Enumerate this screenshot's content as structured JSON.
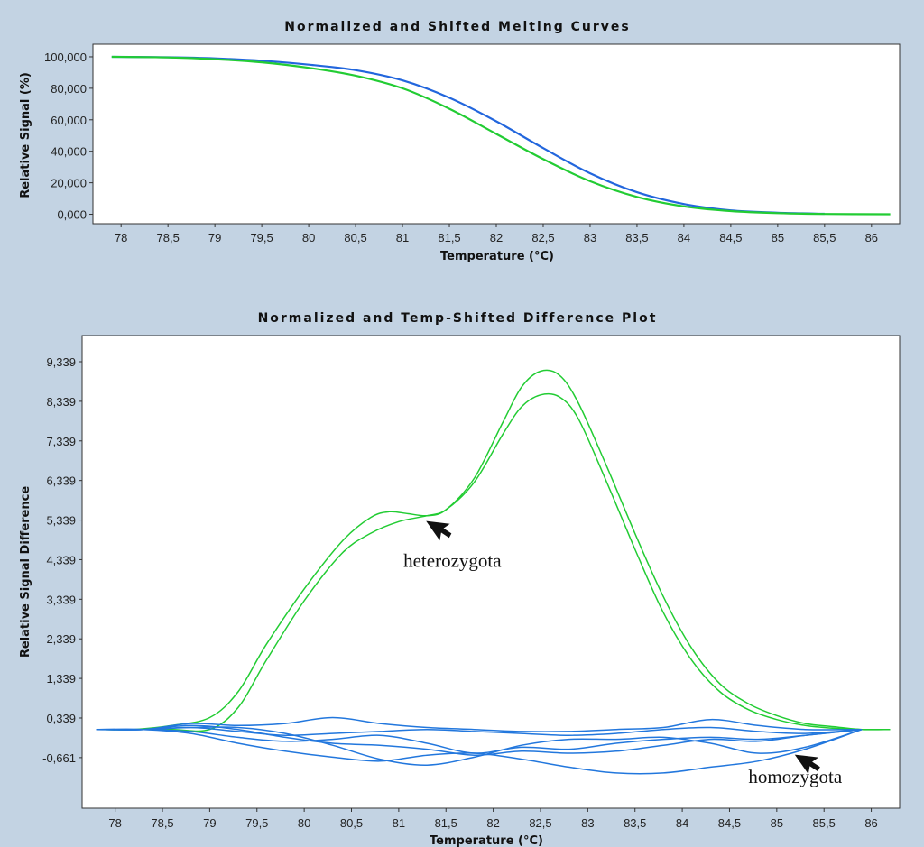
{
  "chart_data": [
    {
      "type": "line",
      "title": "Normalized and Shifted Melting Curves",
      "xlabel": "Temperature (°C)",
      "ylabel": "Relative Signal (%)",
      "xlim": [
        77.7,
        86.3
      ],
      "ylim": [
        -6,
        108
      ],
      "x_ticks": [
        "78",
        "78,5",
        "79",
        "79,5",
        "80",
        "80,5",
        "81",
        "81,5",
        "82",
        "82,5",
        "83",
        "83,5",
        "84",
        "84,5",
        "85",
        "85,5",
        "86"
      ],
      "x_tick_values": [
        78,
        78.5,
        79,
        79.5,
        80,
        80.5,
        81,
        81.5,
        82,
        82.5,
        83,
        83.5,
        84,
        84.5,
        85,
        85.5,
        86
      ],
      "y_ticks": [
        "0,000",
        "20,000",
        "40,000",
        "60,000",
        "80,000",
        "100,000"
      ],
      "y_tick_values": [
        0,
        20,
        40,
        60,
        80,
        100
      ],
      "legend": "none",
      "grid": false,
      "series": [
        {
          "color": "#2266dd",
          "x": [
            77.9,
            78.5,
            79.0,
            79.5,
            80.0,
            80.5,
            81.0,
            81.5,
            82.0,
            82.5,
            83.0,
            83.5,
            84.0,
            84.5,
            85.0,
            85.5
          ],
          "y": [
            100,
            99.7,
            99,
            97.5,
            95,
            91.5,
            85,
            74,
            59,
            42,
            26,
            14,
            6.5,
            2.5,
            1,
            0.3
          ]
        },
        {
          "color": "#22cc33",
          "x": [
            77.9,
            78.5,
            79.0,
            79.5,
            80.0,
            80.5,
            81.0,
            81.5,
            82.0,
            82.5,
            83.0,
            83.5,
            84.0,
            84.5,
            85.0,
            85.5,
            86.2
          ],
          "y": [
            100,
            99.6,
            98.5,
            96.5,
            93,
            88,
            80,
            67,
            51,
            35,
            21,
            11,
            5,
            2,
            0.7,
            0.2,
            0
          ]
        }
      ]
    },
    {
      "type": "line",
      "title": "Normalized and Temp-Shifted Difference Plot",
      "xlabel": "Temperature (°C)",
      "ylabel": "Relative Signal Difference",
      "xlim": [
        77.65,
        86.3
      ],
      "ylim": [
        -1.94,
        10.0
      ],
      "x_ticks": [
        "78",
        "78,5",
        "79",
        "79,5",
        "80",
        "80,5",
        "81",
        "81,5",
        "82",
        "82,5",
        "83",
        "83,5",
        "84",
        "84,5",
        "85",
        "85,5",
        "86"
      ],
      "x_tick_values": [
        78,
        78.5,
        79,
        79.5,
        80,
        80.5,
        81,
        81.5,
        82,
        82.5,
        83,
        83.5,
        84,
        84.5,
        85,
        85.5,
        86
      ],
      "y_ticks": [
        "-0,661",
        "0,339",
        "1,339",
        "2,339",
        "3,339",
        "4,339",
        "5,339",
        "6,339",
        "7,339",
        "8,339",
        "9,339"
      ],
      "y_tick_values": [
        -0.661,
        0.339,
        1.339,
        2.339,
        3.339,
        4.339,
        5.339,
        6.339,
        7.339,
        8.339,
        9.339
      ],
      "legend": "none",
      "grid": false,
      "annotations": [
        {
          "text": "heterozygota",
          "x": 81.05,
          "y": 4.15,
          "arrow_to": [
            81.3,
            5.3
          ]
        },
        {
          "text": "homozygota",
          "x": 84.7,
          "y": -1.3,
          "arrow_to": [
            85.2,
            -0.6
          ]
        }
      ],
      "series": [
        {
          "color": "#22cc33",
          "x": [
            77.8,
            78.2,
            78.6,
            79.0,
            79.3,
            79.6,
            80.0,
            80.4,
            80.7,
            80.9,
            81.1,
            81.3,
            81.5,
            81.8,
            82.1,
            82.3,
            82.5,
            82.7,
            82.9,
            83.2,
            83.5,
            83.8,
            84.1,
            84.4,
            84.7,
            85.0,
            85.3,
            85.6,
            85.9,
            86.2
          ],
          "y": [
            0.05,
            0.05,
            0.15,
            0.35,
            1.0,
            2.2,
            3.6,
            4.8,
            5.4,
            5.55,
            5.5,
            5.45,
            5.6,
            6.4,
            7.8,
            8.7,
            9.1,
            9.0,
            8.3,
            6.7,
            5.0,
            3.4,
            2.1,
            1.2,
            0.7,
            0.4,
            0.2,
            0.12,
            0.05,
            0.05
          ]
        },
        {
          "color": "#22cc33",
          "x": [
            77.8,
            78.2,
            78.6,
            79.0,
            79.3,
            79.6,
            80.0,
            80.4,
            80.7,
            81.0,
            81.3,
            81.5,
            81.8,
            82.1,
            82.3,
            82.5,
            82.7,
            82.9,
            83.2,
            83.5,
            83.8,
            84.1,
            84.4,
            84.7,
            85.0,
            85.3,
            85.6,
            85.9,
            86.2
          ],
          "y": [
            0.05,
            0.05,
            0.05,
            0.05,
            0.6,
            1.8,
            3.3,
            4.5,
            5.0,
            5.3,
            5.45,
            5.6,
            6.3,
            7.5,
            8.2,
            8.5,
            8.45,
            7.9,
            6.3,
            4.6,
            3.0,
            1.8,
            1.0,
            0.55,
            0.3,
            0.15,
            0.08,
            0.05,
            0.05
          ]
        },
        {
          "color": "#2277dd",
          "x": [
            77.8,
            78.3,
            78.8,
            79.3,
            79.8,
            80.3,
            80.8,
            81.3,
            81.8,
            82.3,
            82.8,
            83.3,
            83.8,
            84.3,
            84.8,
            85.3,
            85.9
          ],
          "y": [
            0.05,
            0.05,
            0.2,
            0.15,
            0.2,
            0.35,
            0.2,
            0.1,
            0.05,
            0.0,
            0.0,
            0.05,
            0.1,
            0.3,
            0.15,
            0.05,
            0.05
          ]
        },
        {
          "color": "#2277dd",
          "x": [
            77.8,
            78.3,
            78.8,
            79.3,
            79.8,
            80.3,
            80.8,
            81.3,
            81.8,
            82.3,
            82.8,
            83.3,
            83.8,
            84.3,
            84.8,
            85.3,
            85.9
          ],
          "y": [
            0.05,
            0.05,
            0.1,
            0.0,
            -0.1,
            -0.05,
            0.0,
            0.05,
            0.0,
            -0.05,
            -0.1,
            -0.05,
            0.05,
            0.1,
            0.0,
            -0.05,
            0.05
          ]
        },
        {
          "color": "#2277dd",
          "x": [
            77.8,
            78.3,
            78.8,
            79.3,
            79.8,
            80.3,
            80.8,
            81.3,
            81.8,
            82.3,
            82.8,
            83.3,
            83.8,
            84.3,
            84.8,
            85.3,
            85.9
          ],
          "y": [
            0.05,
            0.05,
            0.0,
            -0.15,
            -0.25,
            -0.2,
            -0.1,
            -0.3,
            -0.55,
            -0.4,
            -0.45,
            -0.3,
            -0.2,
            -0.15,
            -0.2,
            -0.1,
            0.05
          ]
        },
        {
          "color": "#2277dd",
          "x": [
            77.8,
            78.3,
            78.8,
            79.3,
            79.8,
            80.3,
            80.8,
            81.3,
            81.8,
            82.3,
            82.8,
            83.3,
            83.8,
            84.3,
            84.8,
            85.3,
            85.9
          ],
          "y": [
            0.05,
            0.05,
            -0.05,
            -0.3,
            -0.5,
            -0.65,
            -0.75,
            -0.6,
            -0.55,
            -0.7,
            -0.9,
            -1.05,
            -1.05,
            -0.9,
            -0.75,
            -0.45,
            0.05
          ]
        },
        {
          "color": "#2277dd",
          "x": [
            77.8,
            78.3,
            78.8,
            79.3,
            79.8,
            80.3,
            80.8,
            81.3,
            81.8,
            82.3,
            82.8,
            83.3,
            83.8,
            84.3,
            84.8,
            85.3,
            85.9
          ],
          "y": [
            0.05,
            0.05,
            0.1,
            0.1,
            -0.05,
            -0.35,
            -0.7,
            -0.85,
            -0.65,
            -0.35,
            -0.2,
            -0.2,
            -0.15,
            -0.3,
            -0.55,
            -0.4,
            0.05
          ]
        },
        {
          "color": "#2277dd",
          "x": [
            77.8,
            78.3,
            78.8,
            79.3,
            79.8,
            80.3,
            80.8,
            81.3,
            81.8,
            82.3,
            82.8,
            83.3,
            83.8,
            84.3,
            84.8,
            85.3,
            85.9
          ],
          "y": [
            0.05,
            0.05,
            0.15,
            0.05,
            -0.15,
            -0.3,
            -0.35,
            -0.45,
            -0.6,
            -0.5,
            -0.55,
            -0.5,
            -0.35,
            -0.2,
            -0.25,
            -0.1,
            0.05
          ]
        }
      ]
    }
  ]
}
